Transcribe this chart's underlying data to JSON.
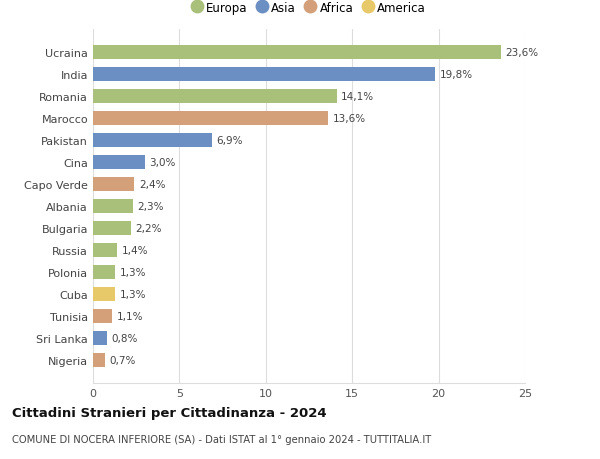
{
  "countries": [
    "Ucraina",
    "India",
    "Romania",
    "Marocco",
    "Pakistan",
    "Cina",
    "Capo Verde",
    "Albania",
    "Bulgaria",
    "Russia",
    "Polonia",
    "Cuba",
    "Tunisia",
    "Sri Lanka",
    "Nigeria"
  ],
  "values": [
    23.6,
    19.8,
    14.1,
    13.6,
    6.9,
    3.0,
    2.4,
    2.3,
    2.2,
    1.4,
    1.3,
    1.3,
    1.1,
    0.8,
    0.7
  ],
  "labels": [
    "23,6%",
    "19,8%",
    "14,1%",
    "13,6%",
    "6,9%",
    "3,0%",
    "2,4%",
    "2,3%",
    "2,2%",
    "1,4%",
    "1,3%",
    "1,3%",
    "1,1%",
    "0,8%",
    "0,7%"
  ],
  "colors": [
    "#a8c07a",
    "#6b8fc2",
    "#a8c07a",
    "#d4a07a",
    "#6b8fc2",
    "#6b8fc2",
    "#d4a07a",
    "#a8c07a",
    "#a8c07a",
    "#a8c07a",
    "#a8c07a",
    "#e8c96a",
    "#d4a07a",
    "#6b8fc2",
    "#d4a07a"
  ],
  "legend_labels": [
    "Europa",
    "Asia",
    "Africa",
    "America"
  ],
  "legend_colors": [
    "#a8c07a",
    "#6b8fc2",
    "#d4a07a",
    "#e8c96a"
  ],
  "title": "Cittadini Stranieri per Cittadinanza - 2024",
  "subtitle": "COMUNE DI NOCERA INFERIORE (SA) - Dati ISTAT al 1° gennaio 2024 - TUTTITALIA.IT",
  "xlim": [
    0,
    25
  ],
  "xticks": [
    0,
    5,
    10,
    15,
    20,
    25
  ],
  "bg_color": "#ffffff",
  "grid_color": "#dddddd"
}
